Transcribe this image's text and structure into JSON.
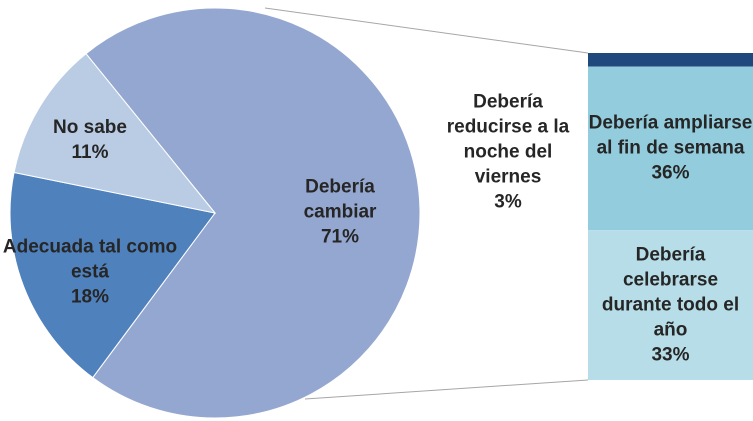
{
  "chart_data": {
    "type": "pie",
    "categories": [
      "Debería cambiar",
      "Adecuada tal como está",
      "No sabe"
    ],
    "values": [
      71,
      18,
      11
    ],
    "value_labels": [
      "71%",
      "18%",
      "11%"
    ],
    "colors": [
      "#94a7d0",
      "#4f81bd",
      "#b9cce4"
    ],
    "breakdown": {
      "categories": [
        "Debería reducirse a la noche del viernes",
        "Debería ampliarse al fin de semana",
        "Debería celebrarse durante todo el año"
      ],
      "values": [
        3,
        36,
        33
      ],
      "value_labels": [
        "3%",
        "36%",
        "33%"
      ],
      "colors": [
        "#1f497d",
        "#93cddd",
        "#b7dee8"
      ]
    }
  }
}
